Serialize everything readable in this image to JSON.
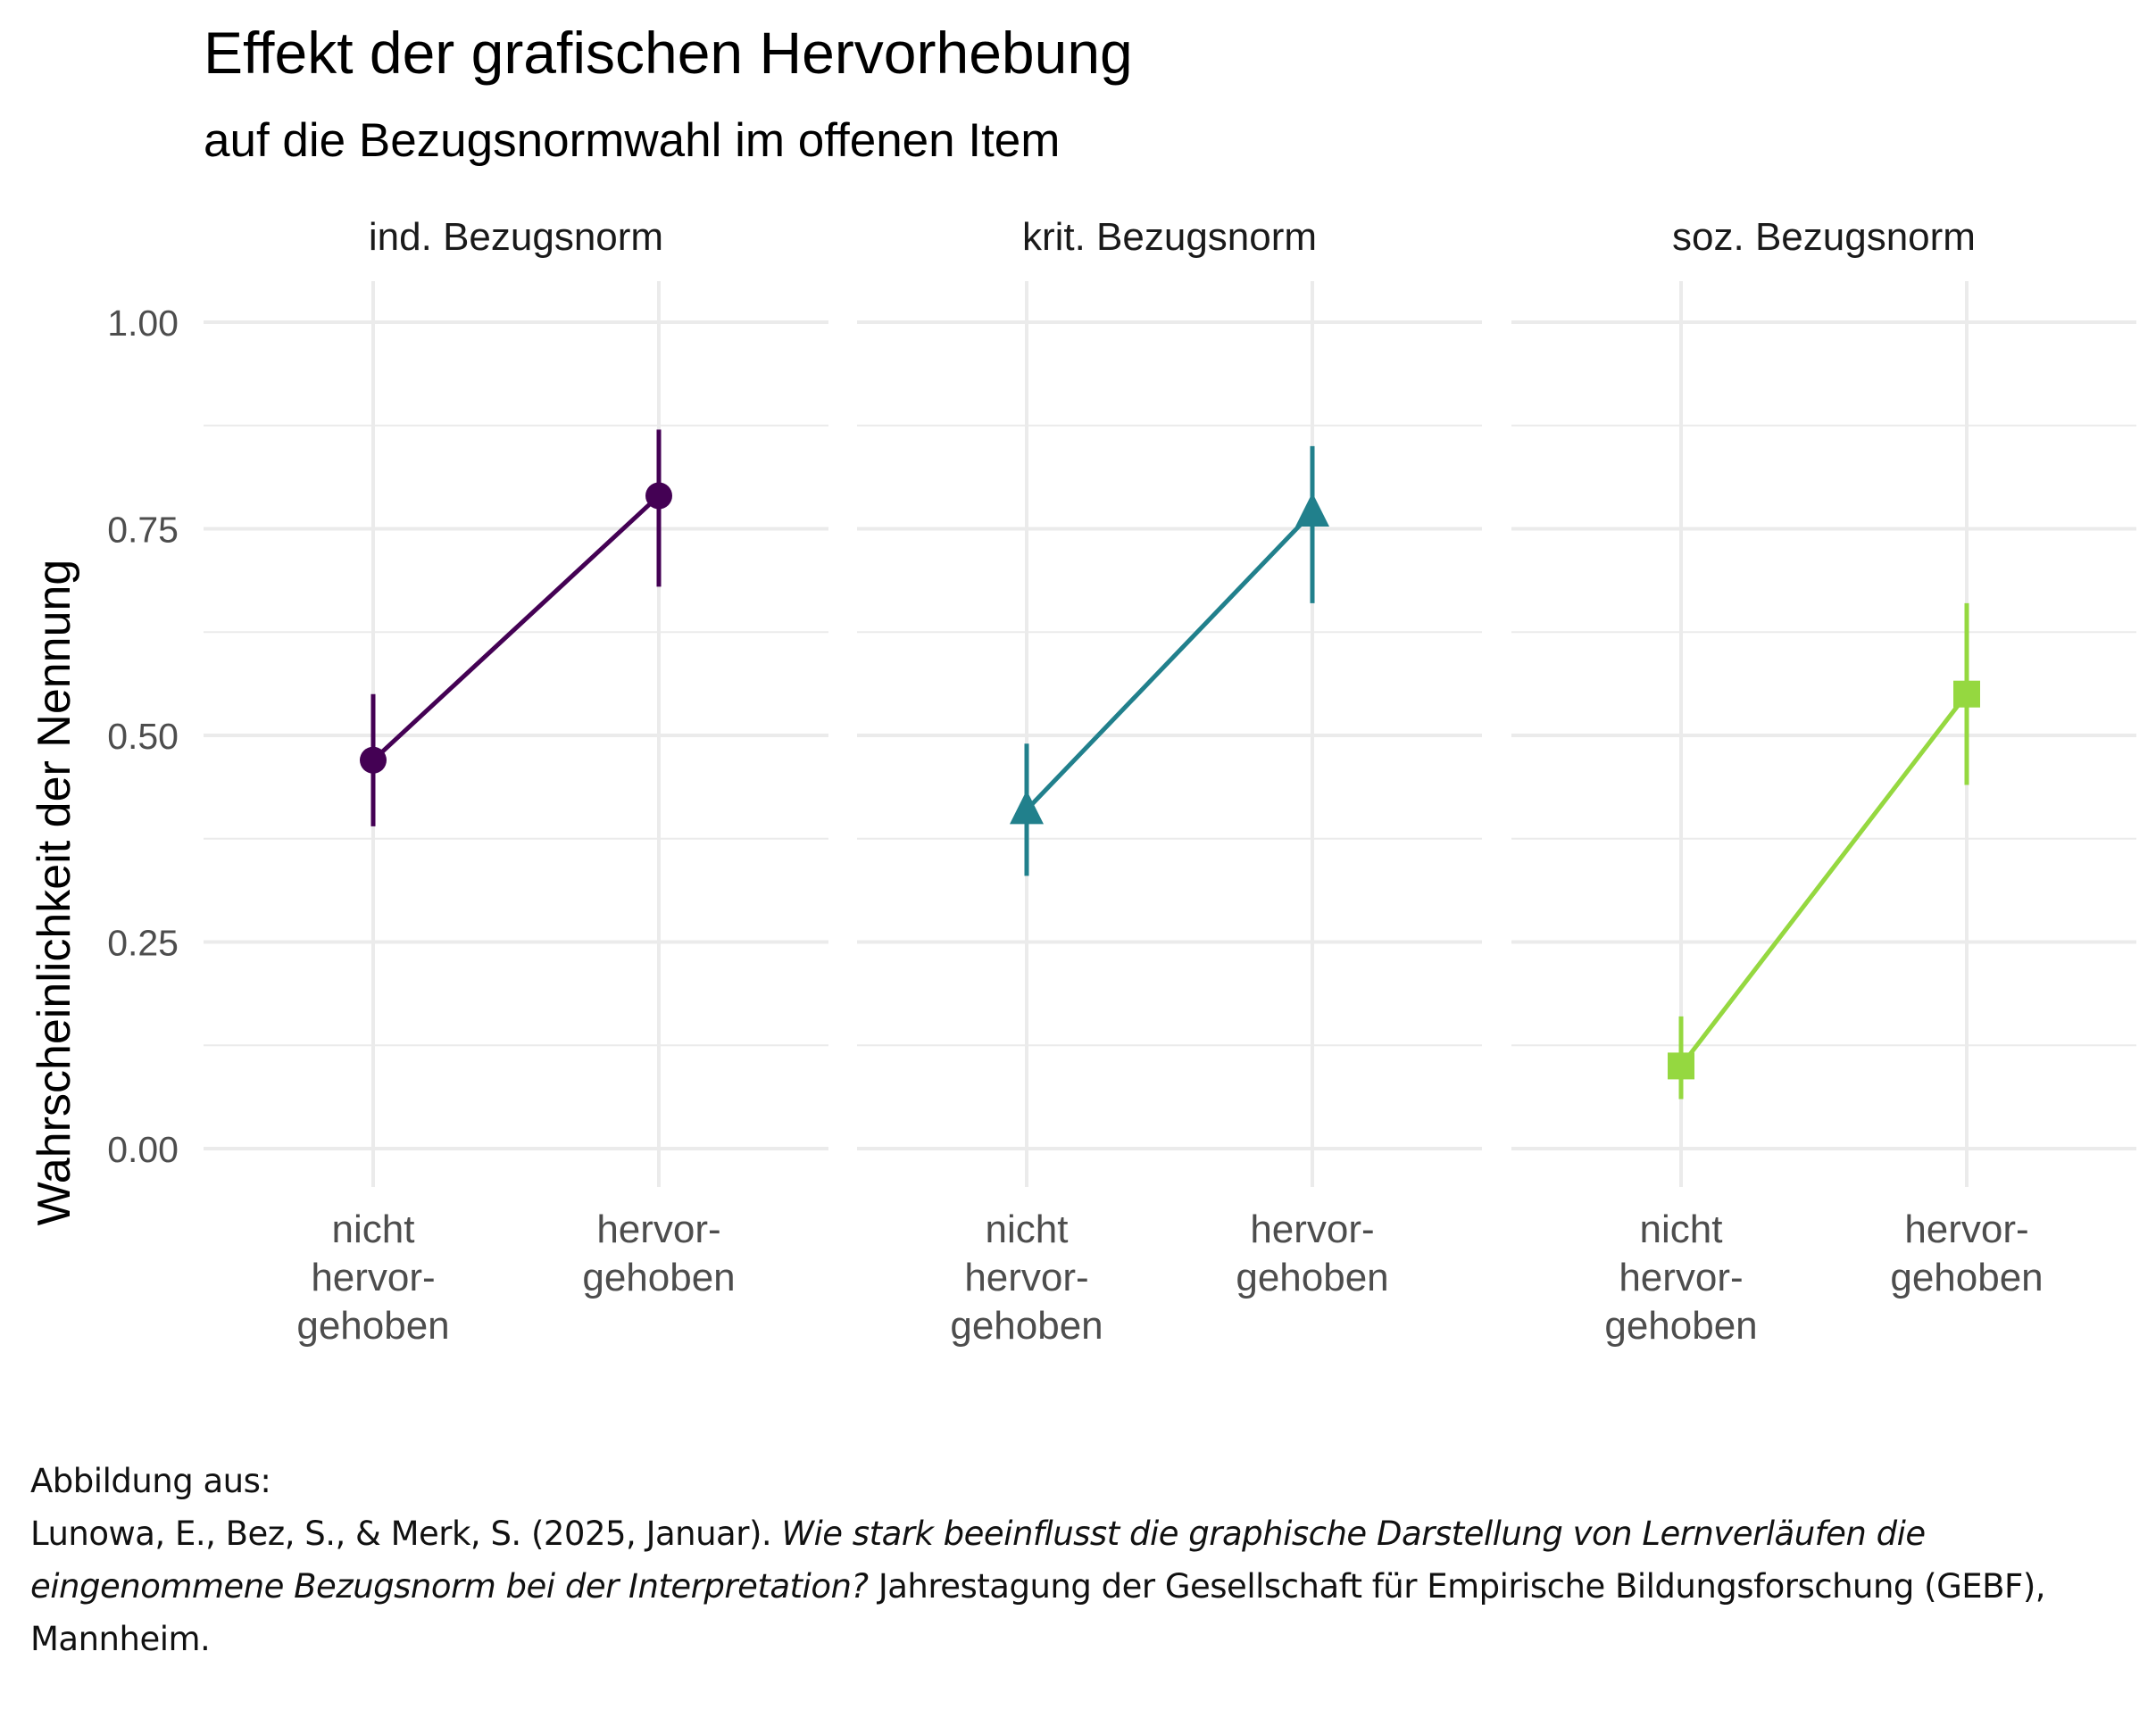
{
  "title": "Effekt der grafischen Hervorhebung",
  "subtitle": "auf die Bezugsnormwahl im offenen Item",
  "chart_data": {
    "type": "line",
    "ylabel": "Wahrscheinlichkeit der Nennung",
    "ylim": [
      0,
      1
    ],
    "yticks": [
      "0.00",
      "0.25",
      "0.50",
      "0.75",
      "1.00"
    ],
    "categories": [
      "nicht hervor-gehoben",
      "hervor-gehoben"
    ],
    "category_lines": [
      [
        "nicht",
        "hervor-",
        "gehoben"
      ],
      [
        "hervor-",
        "gehoben"
      ]
    ],
    "grid": true,
    "panels": [
      {
        "label": "ind. Bezugsnorm",
        "color": "#440154",
        "shape": "circle",
        "values": [
          0.47,
          0.79
        ],
        "lower": [
          0.39,
          0.68
        ],
        "upper": [
          0.55,
          0.87
        ]
      },
      {
        "label": "krit. Bezugsnorm",
        "color": "#21808C",
        "shape": "triangle",
        "values": [
          0.41,
          0.77
        ],
        "lower": [
          0.33,
          0.66
        ],
        "upper": [
          0.49,
          0.85
        ]
      },
      {
        "label": "soz. Bezugsnorm",
        "color": "#95D840",
        "shape": "square",
        "values": [
          0.1,
          0.55
        ],
        "lower": [
          0.06,
          0.44
        ],
        "upper": [
          0.16,
          0.66
        ]
      }
    ]
  },
  "caption": {
    "line1": "Abbildung aus:",
    "authors": "Lunowa, E., Bez, S., & Merk, S. (2025, Januar). ",
    "work_title": "Wie stark beeinflusst die graphische Darstellung von Lernverläufen die eingenommene Bezugsnorm bei der Interpretation?",
    "venue": " Jahrestagung der Gesellschaft für Empirische Bildungsforschung (GEBF), Mannheim."
  }
}
